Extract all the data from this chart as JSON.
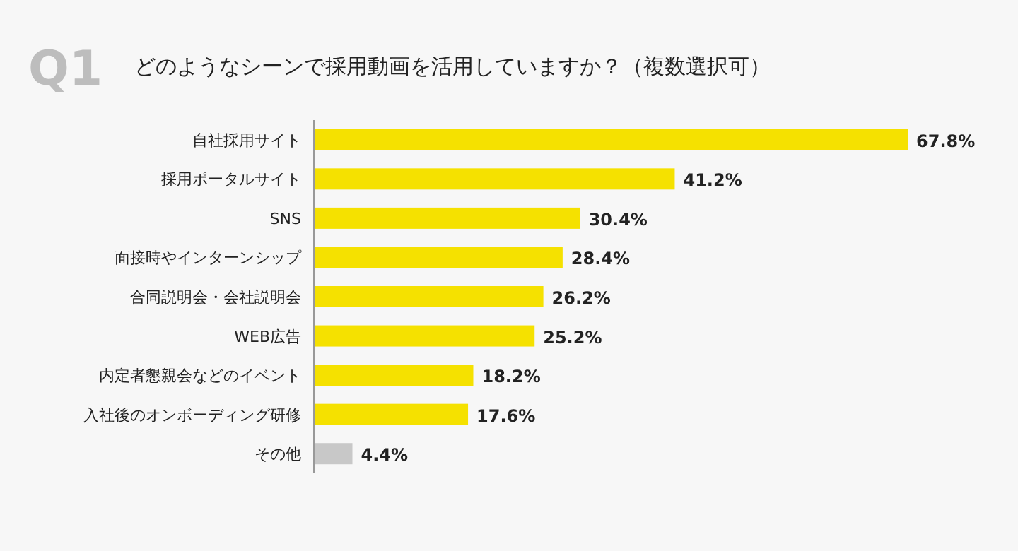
{
  "chart_data": {
    "type": "bar",
    "orientation": "horizontal",
    "title": "Q1",
    "subtitle": "どのようなシーンで採用動画を活用していますか？（複数選択可）",
    "categories": [
      "自社採用サイト",
      "採用ポータルサイト",
      "SNS",
      "面接時やインターンシップ",
      "合同説明会・会社説明会",
      "WEB広告",
      "内定者懇親会などのイベント",
      "入社後のオンボーディング研修",
      "その他"
    ],
    "values": [
      67.8,
      41.2,
      30.4,
      28.4,
      26.2,
      25.2,
      18.2,
      17.6,
      4.4
    ],
    "colors": [
      "#f5e100",
      "#f5e100",
      "#f5e100",
      "#f5e100",
      "#f5e100",
      "#f5e100",
      "#f5e100",
      "#f5e100",
      "#c8c8c8"
    ],
    "value_labels": [
      "67.8%",
      "41.2%",
      "30.4%",
      "28.4%",
      "26.2%",
      "25.2%",
      "18.2%",
      "17.6%",
      "4.4%"
    ]
  }
}
